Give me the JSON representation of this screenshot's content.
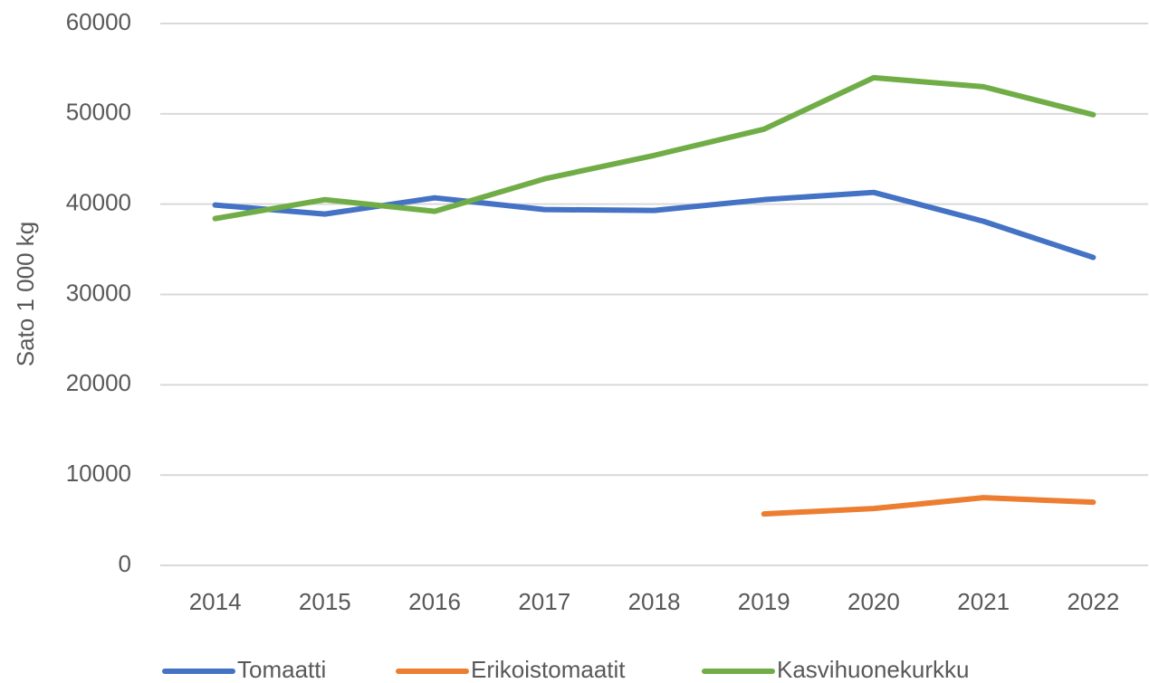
{
  "chart_data": {
    "type": "line",
    "y_label": "Sato 1 000 kg",
    "categories": [
      "2014",
      "2015",
      "2016",
      "2017",
      "2018",
      "2019",
      "2020",
      "2021",
      "2022"
    ],
    "series": [
      {
        "name": "Tomaatti",
        "color": "#4472c4",
        "values": [
          39900,
          38900,
          40700,
          39400,
          39300,
          40500,
          41300,
          38100,
          34100
        ]
      },
      {
        "name": "Erikoistomaatit",
        "color": "#ed7d31",
        "values": [
          null,
          null,
          null,
          null,
          null,
          5700,
          6300,
          7500,
          7000
        ]
      },
      {
        "name": "Kasvihuonekurkku",
        "color": "#70ad47",
        "values": [
          38400,
          40500,
          39200,
          42800,
          45400,
          48300,
          54000,
          53000,
          49900
        ]
      }
    ],
    "ylim": [
      0,
      60000
    ],
    "yticks": [
      0,
      10000,
      20000,
      30000,
      40000,
      50000,
      60000
    ],
    "grid": true,
    "legend": "bottom"
  }
}
